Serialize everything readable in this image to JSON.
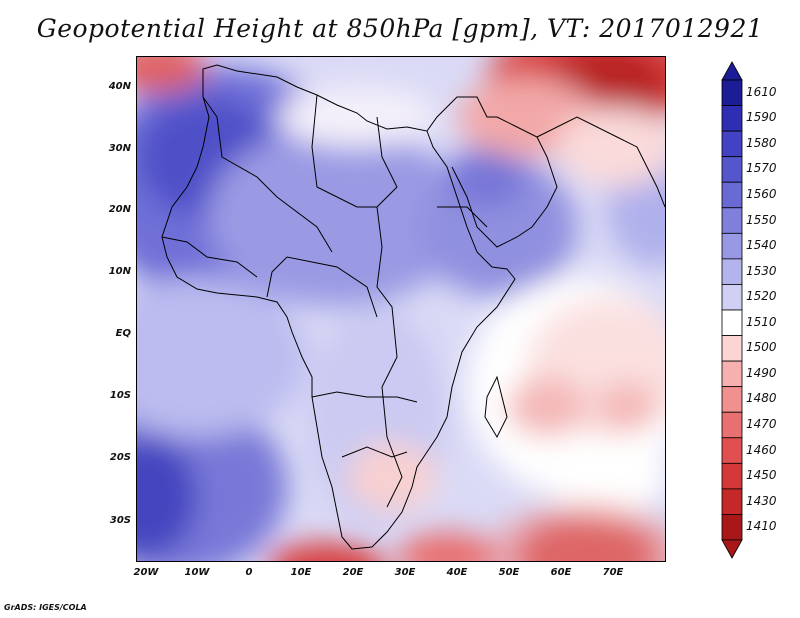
{
  "title": "Geopotential Height at 850hPa [gpm], VT: 2017012921",
  "credit": "GrADS: IGES/COLA",
  "lat_labels": [
    "40N",
    "30N",
    "20N",
    "10N",
    "EQ",
    "10S",
    "20S",
    "30S"
  ],
  "lon_labels": [
    "20W",
    "10W",
    "0",
    "10E",
    "20E",
    "30E",
    "40E",
    "50E",
    "60E",
    "70E"
  ],
  "colorbar": {
    "levels": [
      "1610",
      "1590",
      "1580",
      "1570",
      "1560",
      "1550",
      "1540",
      "1530",
      "1520",
      "1510",
      "1500",
      "1490",
      "1480",
      "1470",
      "1460",
      "1450",
      "1430",
      "1410"
    ],
    "colors": [
      "#1c1c96",
      "#2e2eb4",
      "#4242c4",
      "#5656cc",
      "#6a6ad4",
      "#8080dc",
      "#9898e4",
      "#b4b4ec",
      "#d0d0f4",
      "#ffffff",
      "#fcd4d4",
      "#f6b0b0",
      "#f09090",
      "#e87070",
      "#e05050",
      "#d43838",
      "#c42828",
      "#a81818"
    ]
  }
}
